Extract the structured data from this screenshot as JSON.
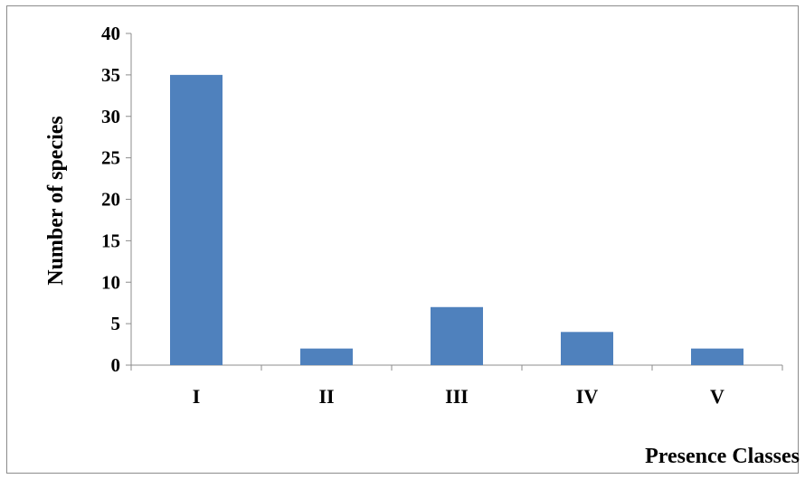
{
  "chart_data": {
    "type": "bar",
    "title": "",
    "xlabel": "Presence Classes",
    "ylabel": "Number of species",
    "categories": [
      "I",
      "II",
      "III",
      "IV",
      "V"
    ],
    "values": [
      35,
      2,
      7,
      4,
      2
    ],
    "ylim": [
      0,
      40
    ],
    "yticks": [
      "0",
      "5",
      "10",
      "15",
      "20",
      "25",
      "30",
      "35",
      "40"
    ],
    "grid": false,
    "legend": "none",
    "bar_color": "#4f81bd"
  }
}
